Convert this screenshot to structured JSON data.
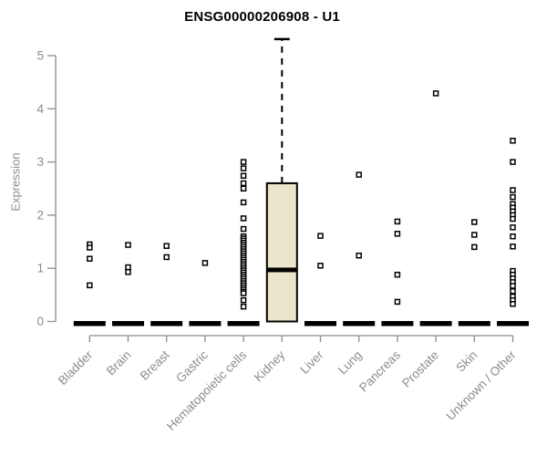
{
  "chart_data": {
    "type": "boxplot",
    "title": "ENSG00000206908 - U1",
    "ylabel": "Expression",
    "xlabel": "",
    "ylim": [
      0,
      5.4
    ],
    "yticks": [
      0,
      1,
      2,
      3,
      4,
      5
    ],
    "grid": false,
    "legend": "none",
    "categories": [
      "Bladder",
      "Brain",
      "Breast",
      "Gastric",
      "Hematopoietic cells",
      "Kidney",
      "Liver",
      "Lung",
      "Pancreas",
      "Prostate",
      "Skin",
      "Unknown / Other"
    ],
    "boxes": [
      {
        "category": "Bladder",
        "q1": 0,
        "median": 0,
        "q3": 0,
        "whisker_low": 0,
        "whisker_high": 0,
        "collapsed": true
      },
      {
        "category": "Brain",
        "q1": 0,
        "median": 0,
        "q3": 0,
        "whisker_low": 0,
        "whisker_high": 0,
        "collapsed": true
      },
      {
        "category": "Breast",
        "q1": 0,
        "median": 0,
        "q3": 0,
        "whisker_low": 0,
        "whisker_high": 0,
        "collapsed": true
      },
      {
        "category": "Gastric",
        "q1": 0,
        "median": 0,
        "q3": 0,
        "whisker_low": 0,
        "whisker_high": 0,
        "collapsed": true
      },
      {
        "category": "Hematopoietic cells",
        "q1": 0,
        "median": 0,
        "q3": 0,
        "whisker_low": 0,
        "whisker_high": 0,
        "collapsed": true
      },
      {
        "category": "Kidney",
        "q1": 0,
        "median": 0.97,
        "q3": 2.6,
        "whisker_low": 0,
        "whisker_high": 5.31,
        "collapsed": false
      },
      {
        "category": "Liver",
        "q1": 0,
        "median": 0,
        "q3": 0,
        "whisker_low": 0,
        "whisker_high": 0,
        "collapsed": true
      },
      {
        "category": "Lung",
        "q1": 0,
        "median": 0,
        "q3": 0,
        "whisker_low": 0,
        "whisker_high": 0,
        "collapsed": true
      },
      {
        "category": "Pancreas",
        "q1": 0,
        "median": 0,
        "q3": 0,
        "whisker_low": 0,
        "whisker_high": 0,
        "collapsed": true
      },
      {
        "category": "Prostate",
        "q1": 0,
        "median": 0,
        "q3": 0,
        "whisker_low": 0,
        "whisker_high": 0,
        "collapsed": true
      },
      {
        "category": "Skin",
        "q1": 0,
        "median": 0,
        "q3": 0,
        "whisker_low": 0,
        "whisker_high": 0,
        "collapsed": true
      },
      {
        "category": "Unknown / Other",
        "q1": 0,
        "median": 0,
        "q3": 0,
        "whisker_low": 0,
        "whisker_high": 0,
        "collapsed": true
      }
    ],
    "outliers": [
      [
        1.45,
        1.39,
        1.18,
        0.68
      ],
      [
        1.44,
        1.02,
        0.93
      ],
      [
        1.42,
        1.21
      ],
      [
        1.1
      ],
      [
        3.0,
        2.88,
        2.74,
        2.6,
        2.5,
        2.24,
        1.94,
        1.74,
        1.6,
        1.56,
        1.52,
        1.48,
        1.44,
        1.4,
        1.36,
        1.32,
        1.28,
        1.24,
        1.2,
        1.16,
        1.12,
        1.08,
        1.04,
        1.0,
        0.96,
        0.92,
        0.88,
        0.84,
        0.8,
        0.76,
        0.72,
        0.68,
        0.64,
        0.6,
        0.56,
        0.53,
        0.4,
        0.28
      ],
      [],
      [
        1.61,
        1.05
      ],
      [
        2.76,
        1.24
      ],
      [
        1.88,
        1.65,
        0.88,
        0.37
      ],
      [
        4.29
      ],
      [
        1.87,
        1.63,
        1.4
      ],
      [
        3.4,
        3.0,
        2.47,
        2.34,
        2.21,
        2.14,
        2.07,
        2.0,
        1.93,
        1.77,
        1.6,
        1.41,
        0.95,
        0.88,
        0.81,
        0.74,
        0.67,
        0.57,
        0.47,
        0.4,
        0.33
      ]
    ],
    "colors": {
      "box_fill": "#ebe5cb",
      "box_border": "#000000",
      "median": "#000000",
      "whisker": "#000000",
      "point": "#000000",
      "axis": "#8c8c8c",
      "tick_label": "#8c8c8c",
      "title": "#000000"
    }
  }
}
